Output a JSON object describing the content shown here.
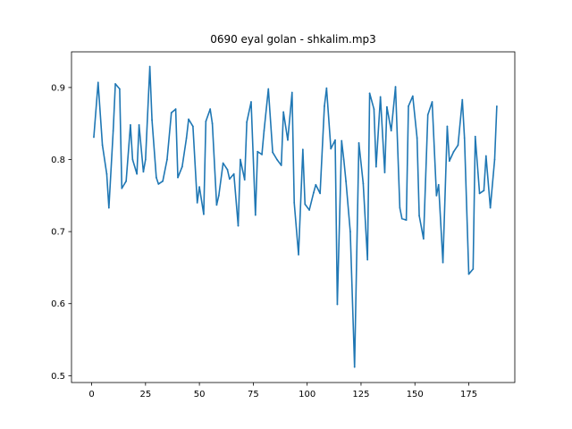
{
  "chart_data": {
    "type": "line",
    "title": "0690 eyal golan - shkalim.mp3",
    "xlabel": "",
    "ylabel": "",
    "xlim": [
      -9.35,
      196.35
    ],
    "ylim": [
      0.4905,
      0.9495
    ],
    "xticks": [
      0,
      25,
      50,
      75,
      100,
      125,
      150,
      175
    ],
    "yticks": [
      0.5,
      0.6,
      0.7,
      0.8,
      0.9
    ],
    "xtick_labels": [
      "0",
      "25",
      "50",
      "75",
      "100",
      "125",
      "150",
      "175"
    ],
    "ytick_labels": [
      "0.5",
      "0.6",
      "0.7",
      "0.8",
      "0.9"
    ],
    "grid": false,
    "series": [
      {
        "color": "#1f77b4",
        "x": [
          1,
          3,
          5,
          7,
          8,
          10,
          11,
          13,
          14,
          16,
          18,
          19,
          21,
          22,
          24,
          25,
          27,
          28,
          30,
          31,
          33,
          35,
          37,
          39,
          40,
          42,
          44,
          45,
          47,
          49,
          50,
          52,
          53,
          55,
          56,
          58,
          59,
          61,
          63,
          64,
          66,
          68,
          69,
          71,
          72,
          74,
          76,
          77,
          79,
          80,
          82,
          84,
          86,
          88,
          89,
          91,
          93,
          94,
          96,
          98,
          99,
          101,
          103,
          104,
          106,
          108,
          109,
          111,
          113,
          114,
          116,
          117,
          118,
          120,
          122,
          124,
          126,
          128,
          129,
          131,
          132,
          134,
          136,
          137,
          139,
          141,
          143,
          144,
          146,
          147,
          149,
          151,
          152,
          154,
          156,
          158,
          160,
          161,
          163,
          165,
          166,
          168,
          170,
          172,
          173,
          175,
          177,
          178,
          180,
          182,
          183,
          185,
          187,
          188
        ],
        "y": [
          0.831,
          0.907,
          0.82,
          0.78,
          0.733,
          0.84,
          0.905,
          0.898,
          0.76,
          0.77,
          0.848,
          0.8,
          0.78,
          0.848,
          0.783,
          0.8,
          0.929,
          0.855,
          0.775,
          0.766,
          0.77,
          0.8,
          0.865,
          0.87,
          0.775,
          0.79,
          0.83,
          0.856,
          0.846,
          0.74,
          0.762,
          0.724,
          0.853,
          0.87,
          0.85,
          0.737,
          0.75,
          0.795,
          0.786,
          0.773,
          0.78,
          0.708,
          0.8,
          0.772,
          0.852,
          0.88,
          0.723,
          0.811,
          0.807,
          0.84,
          0.898,
          0.81,
          0.8,
          0.792,
          0.866,
          0.827,
          0.893,
          0.74,
          0.668,
          0.814,
          0.738,
          0.73,
          0.754,
          0.765,
          0.753,
          0.874,
          0.899,
          0.815,
          0.827,
          0.599,
          0.826,
          0.8,
          0.77,
          0.7,
          0.512,
          0.823,
          0.767,
          0.661,
          0.892,
          0.87,
          0.79,
          0.887,
          0.782,
          0.873,
          0.84,
          0.901,
          0.733,
          0.718,
          0.716,
          0.874,
          0.888,
          0.83,
          0.722,
          0.69,
          0.862,
          0.88,
          0.75,
          0.765,
          0.657,
          0.846,
          0.798,
          0.811,
          0.82,
          0.883,
          0.83,
          0.641,
          0.648,
          0.832,
          0.753,
          0.757,
          0.805,
          0.733,
          0.8,
          0.874
        ]
      }
    ]
  }
}
